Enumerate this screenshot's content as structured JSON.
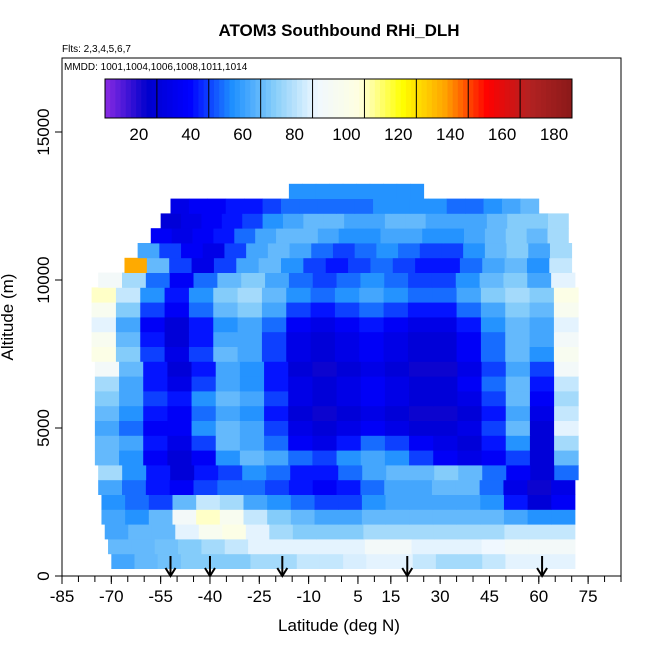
{
  "chart_data": {
    "type": "heatmap",
    "title": "ATOM3 Southbound RHi_DLH",
    "subtitle_flights": "Flts: 2,3,4,5,6,7",
    "subtitle_dates": "MMDD: 1001,1004,1006,1008,1011,1014",
    "xlabel": "Latitude (deg N)",
    "ylabel": "Altitude (m)",
    "xlim": [
      -85,
      85
    ],
    "ylim": [
      0,
      17500
    ],
    "x_ticks": [
      -85,
      -70,
      -55,
      -40,
      -25,
      -10,
      5,
      15,
      30,
      45,
      60,
      75
    ],
    "y_ticks": [
      0,
      5000,
      10000,
      15000
    ],
    "colorbar": {
      "ticks": [
        20,
        40,
        60,
        80,
        100,
        120,
        140,
        160,
        180
      ],
      "range": [
        0,
        180
      ],
      "colors": [
        "#8a2be2",
        "#0000cd",
        "#0000ff",
        "#1e90ff",
        "#87cefa",
        "#f0f8ff",
        "#ffffe0",
        "#ffff00",
        "#ffa500",
        "#ff0000",
        "#b22222",
        "#8b1a1a"
      ]
    },
    "arrows_latitude": [
      -52,
      -40,
      -18,
      20,
      61
    ],
    "altitude_bins": [
      {
        "alt": 500,
        "lat_range": [
          -70,
          71
        ],
        "values": [
          55,
          60,
          62,
          65,
          65,
          65,
          70,
          70,
          75,
          75,
          78,
          80,
          80,
          75,
          70,
          70,
          75,
          80,
          80,
          80
        ]
      },
      {
        "alt": 1000,
        "lat_range": [
          -71,
          71
        ],
        "values": [
          60,
          60,
          62,
          65,
          70,
          75,
          80,
          80,
          80,
          80,
          80,
          85,
          85,
          80,
          80,
          80,
          82,
          85,
          85,
          85
        ]
      },
      {
        "alt": 1500,
        "lat_range": [
          -72,
          71
        ],
        "values": [
          55,
          60,
          60,
          80,
          90,
          95,
          80,
          70,
          65,
          65,
          65,
          70,
          70,
          70,
          70,
          70,
          70,
          75,
          75,
          75
        ]
      },
      {
        "alt": 2000,
        "lat_range": [
          -73,
          71
        ],
        "values": [
          55,
          50,
          60,
          85,
          100,
          90,
          75,
          65,
          60,
          55,
          55,
          60,
          60,
          60,
          60,
          60,
          60,
          55,
          50,
          50
        ]
      },
      {
        "alt": 2500,
        "lat_range": [
          -73,
          71
        ],
        "values": [
          50,
          45,
          40,
          60,
          75,
          70,
          55,
          50,
          45,
          40,
          40,
          50,
          55,
          55,
          55,
          55,
          50,
          35,
          20,
          30
        ]
      },
      {
        "alt": 3000,
        "lat_range": [
          -74,
          71
        ],
        "values": [
          55,
          45,
          35,
          30,
          40,
          45,
          45,
          40,
          35,
          30,
          35,
          45,
          55,
          55,
          60,
          60,
          45,
          25,
          15,
          25
        ]
      },
      {
        "alt": 3500,
        "lat_range": [
          -74,
          72
        ],
        "values": [
          70,
          50,
          35,
          20,
          35,
          40,
          50,
          45,
          35,
          35,
          45,
          55,
          60,
          60,
          65,
          60,
          45,
          30,
          20,
          45
        ]
      },
      {
        "alt": 4000,
        "lat_range": [
          -75,
          72
        ],
        "values": [
          60,
          50,
          30,
          20,
          30,
          50,
          60,
          55,
          45,
          40,
          50,
          55,
          50,
          40,
          30,
          25,
          30,
          40,
          20,
          60
        ]
      },
      {
        "alt": 4500,
        "lat_range": [
          -75,
          72
        ],
        "values": [
          60,
          55,
          35,
          25,
          40,
          60,
          55,
          45,
          30,
          25,
          35,
          45,
          40,
          30,
          25,
          20,
          35,
          50,
          20,
          70
        ]
      },
      {
        "alt": 5000,
        "lat_range": [
          -75,
          72
        ],
        "values": [
          55,
          45,
          30,
          30,
          50,
          60,
          55,
          40,
          25,
          20,
          25,
          30,
          25,
          20,
          20,
          25,
          40,
          60,
          20,
          80
        ]
      },
      {
        "alt": 5500,
        "lat_range": [
          -75,
          72
        ],
        "values": [
          60,
          50,
          35,
          30,
          45,
          55,
          50,
          35,
          20,
          15,
          20,
          25,
          20,
          15,
          15,
          20,
          35,
          55,
          25,
          75
        ]
      },
      {
        "alt": 6000,
        "lat_range": [
          -75,
          72
        ],
        "values": [
          65,
          55,
          40,
          35,
          50,
          60,
          55,
          40,
          25,
          20,
          25,
          30,
          25,
          20,
          20,
          25,
          40,
          60,
          30,
          70
        ]
      },
      {
        "alt": 6500,
        "lat_range": [
          -75,
          72
        ],
        "values": [
          70,
          55,
          35,
          25,
          40,
          55,
          50,
          35,
          25,
          20,
          25,
          30,
          25,
          20,
          20,
          30,
          45,
          60,
          35,
          75
        ]
      },
      {
        "alt": 7000,
        "lat_range": [
          -75,
          72
        ],
        "values": [
          85,
          60,
          35,
          20,
          35,
          55,
          50,
          35,
          20,
          15,
          20,
          25,
          20,
          15,
          15,
          25,
          40,
          55,
          40,
          85
        ]
      },
      {
        "alt": 7500,
        "lat_range": [
          -76,
          72
        ],
        "values": [
          95,
          65,
          40,
          25,
          40,
          60,
          55,
          40,
          25,
          20,
          25,
          30,
          25,
          20,
          20,
          30,
          45,
          60,
          50,
          90
        ]
      },
      {
        "alt": 8000,
        "lat_range": [
          -76,
          72
        ],
        "values": [
          90,
          60,
          35,
          20,
          35,
          55,
          55,
          40,
          25,
          20,
          25,
          30,
          25,
          20,
          20,
          30,
          45,
          60,
          55,
          85
        ]
      },
      {
        "alt": 8500,
        "lat_range": [
          -76,
          72
        ],
        "values": [
          80,
          55,
          30,
          20,
          35,
          50,
          55,
          45,
          30,
          25,
          30,
          35,
          30,
          25,
          25,
          35,
          50,
          60,
          55,
          80
        ]
      },
      {
        "alt": 9000,
        "lat_range": [
          -76,
          72
        ],
        "values": [
          90,
          65,
          40,
          30,
          45,
          60,
          65,
          55,
          40,
          35,
          40,
          45,
          40,
          35,
          35,
          45,
          55,
          65,
          60,
          90
        ]
      },
      {
        "alt": 9500,
        "lat_range": [
          -76,
          72
        ],
        "values": [
          100,
          75,
          50,
          35,
          50,
          65,
          70,
          60,
          50,
          45,
          50,
          55,
          50,
          45,
          45,
          55,
          65,
          70,
          65,
          95
        ]
      },
      {
        "alt": 10000,
        "lat_range": [
          -74,
          71
        ],
        "values": [
          85,
          70,
          45,
          30,
          45,
          60,
          65,
          55,
          45,
          40,
          45,
          50,
          45,
          40,
          40,
          50,
          60,
          65,
          55,
          80
        ]
      },
      {
        "alt": 10500,
        "lat_range": [
          -66,
          70
        ],
        "values": [
          130,
          60,
          40,
          25,
          40,
          55,
          60,
          50,
          40,
          35,
          40,
          45,
          40,
          35,
          35,
          45,
          55,
          60,
          50,
          75
        ]
      },
      {
        "alt": 11000,
        "lat_range": [
          -62,
          70
        ],
        "values": [
          55,
          40,
          30,
          25,
          40,
          55,
          60,
          55,
          45,
          40,
          45,
          50,
          45,
          40,
          40,
          50,
          60,
          65,
          55,
          70
        ]
      },
      {
        "alt": 11500,
        "lat_range": [
          -58,
          69
        ],
        "values": [
          30,
          25,
          30,
          35,
          45,
          55,
          60,
          60,
          55,
          50,
          50,
          55,
          55,
          50,
          50,
          55,
          60,
          65,
          60,
          70
        ]
      },
      {
        "alt": 12000,
        "lat_range": [
          -55,
          69
        ],
        "values": [
          20,
          25,
          30,
          35,
          40,
          50,
          55,
          60,
          60,
          55,
          55,
          60,
          60,
          55,
          55,
          55,
          60,
          65,
          65,
          70
        ]
      },
      {
        "alt": 12500,
        "lat_range": [
          -52,
          60
        ],
        "values": [
          25,
          30,
          30,
          35,
          35,
          40,
          45,
          45,
          45,
          45,
          45,
          50,
          50,
          50,
          50,
          45,
          45,
          50,
          55,
          60
        ]
      },
      {
        "alt": 13000,
        "lat_range": [
          -16,
          25
        ],
        "values": [
          50,
          50,
          50,
          50,
          50,
          50,
          50,
          50,
          50,
          50
        ]
      }
    ]
  }
}
